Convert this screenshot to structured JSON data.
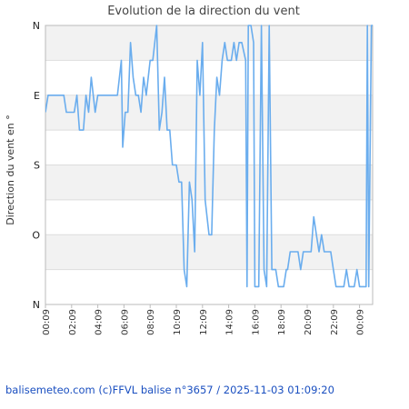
{
  "credit_text": "balisemeteo.com (c)FFVL balise n°3657 / 2025-11-03 01:09:20",
  "colors": {
    "line": "#6aadee",
    "band": "#f2f2f2",
    "grid": "#dddddd",
    "axis": "#bbbbbb"
  },
  "chart_data": {
    "type": "line",
    "title": "Evolution de la direction du vent",
    "ylabel": "Direction du vent en °",
    "xlabel": "",
    "ylim": [
      0,
      360
    ],
    "y_ticks": [
      {
        "value": 360,
        "label": "N"
      },
      {
        "value": 270,
        "label": "E"
      },
      {
        "value": 180,
        "label": "S"
      },
      {
        "value": 90,
        "label": "O"
      },
      {
        "value": 0,
        "label": "N"
      }
    ],
    "x_ticks": [
      "00:09",
      "02:09",
      "04:09",
      "06:09",
      "08:09",
      "10:09",
      "12:09",
      "14:09",
      "16:09",
      "18:09",
      "20:09",
      "22:09",
      "00:09"
    ],
    "x_unit": "hours since 00:09",
    "xlim": [
      0,
      25
    ],
    "grid": true,
    "series": [
      {
        "values": [
          [
            0.0,
            248
          ],
          [
            0.2,
            270
          ],
          [
            1.4,
            270
          ],
          [
            1.6,
            248
          ],
          [
            2.2,
            248
          ],
          [
            2.4,
            270
          ],
          [
            2.6,
            225
          ],
          [
            2.9,
            225
          ],
          [
            3.1,
            270
          ],
          [
            3.3,
            248
          ],
          [
            3.5,
            293
          ],
          [
            3.8,
            248
          ],
          [
            4.0,
            270
          ],
          [
            5.2,
            270
          ],
          [
            5.5,
            270
          ],
          [
            5.8,
            315
          ],
          [
            5.9,
            203
          ],
          [
            6.1,
            248
          ],
          [
            6.3,
            248
          ],
          [
            6.5,
            338
          ],
          [
            6.7,
            293
          ],
          [
            6.9,
            270
          ],
          [
            7.1,
            270
          ],
          [
            7.3,
            248
          ],
          [
            7.5,
            293
          ],
          [
            7.7,
            270
          ],
          [
            8.0,
            315
          ],
          [
            8.2,
            315
          ],
          [
            8.5,
            360
          ],
          [
            8.7,
            225
          ],
          [
            8.9,
            248
          ],
          [
            9.1,
            293
          ],
          [
            9.3,
            225
          ],
          [
            9.5,
            225
          ],
          [
            9.7,
            180
          ],
          [
            10.0,
            180
          ],
          [
            10.2,
            158
          ],
          [
            10.4,
            158
          ],
          [
            10.6,
            45
          ],
          [
            10.8,
            23
          ],
          [
            11.0,
            158
          ],
          [
            11.2,
            135
          ],
          [
            11.4,
            68
          ],
          [
            11.6,
            315
          ],
          [
            11.8,
            270
          ],
          [
            12.0,
            338
          ],
          [
            12.2,
            135
          ],
          [
            12.5,
            90
          ],
          [
            12.7,
            90
          ],
          [
            12.9,
            225
          ],
          [
            13.1,
            293
          ],
          [
            13.3,
            270
          ],
          [
            13.5,
            315
          ],
          [
            13.7,
            338
          ],
          [
            13.9,
            315
          ],
          [
            14.2,
            315
          ],
          [
            14.4,
            338
          ],
          [
            14.6,
            315
          ],
          [
            14.8,
            338
          ],
          [
            15.0,
            338
          ],
          [
            15.3,
            315
          ],
          [
            15.4,
            23
          ],
          [
            15.5,
            360
          ],
          [
            15.7,
            360
          ],
          [
            15.9,
            338
          ],
          [
            16.0,
            23
          ],
          [
            16.3,
            23
          ],
          [
            16.5,
            360
          ],
          [
            16.7,
            45
          ],
          [
            16.9,
            23
          ],
          [
            17.1,
            360
          ],
          [
            17.3,
            45
          ],
          [
            17.6,
            45
          ],
          [
            17.8,
            23
          ],
          [
            18.2,
            23
          ],
          [
            18.4,
            45
          ],
          [
            18.5,
            45
          ],
          [
            18.7,
            68
          ],
          [
            19.3,
            68
          ],
          [
            19.5,
            45
          ],
          [
            19.7,
            68
          ],
          [
            20.3,
            68
          ],
          [
            20.5,
            113
          ],
          [
            20.7,
            90
          ],
          [
            20.9,
            68
          ],
          [
            21.1,
            90
          ],
          [
            21.3,
            68
          ],
          [
            21.8,
            68
          ],
          [
            22.0,
            45
          ],
          [
            22.2,
            23
          ],
          [
            22.8,
            23
          ],
          [
            23.0,
            45
          ],
          [
            23.2,
            23
          ],
          [
            23.6,
            23
          ],
          [
            23.8,
            45
          ],
          [
            24.0,
            23
          ],
          [
            24.5,
            23
          ],
          [
            24.6,
            360
          ],
          [
            24.7,
            23
          ],
          [
            24.9,
            360
          ],
          [
            25.0,
            360
          ],
          [
            25.5,
            360
          ],
          [
            28.0,
            360
          ]
        ]
      }
    ]
  }
}
